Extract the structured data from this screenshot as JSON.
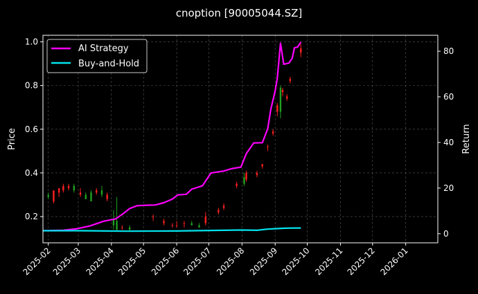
{
  "chart_data": {
    "type": "line",
    "title": "cnoption [90005044.SZ]",
    "ylabel_left": "Price",
    "ylabel_right": "Return",
    "ylim_left": [
      0.08,
      1.03
    ],
    "ylim_right": [
      -4,
      87
    ],
    "xlim": [
      "2025-01-27",
      "2026-01-31"
    ],
    "x_ticks": [
      "2025-02",
      "2025-03",
      "2025-04",
      "2025-05",
      "2025-06",
      "2025-07",
      "2025-08",
      "2025-09",
      "2025-10",
      "2025-11",
      "2025-12",
      "2026-01"
    ],
    "y_ticks_left": [
      "0.2",
      "0.4",
      "0.6",
      "0.8",
      "1.0"
    ],
    "y_ticks_right": [
      "0",
      "20",
      "40",
      "60",
      "80"
    ],
    "grid": true,
    "legend_position": "top-left",
    "colors": {
      "background": "#000000",
      "ai_strategy": "#ff00ff",
      "buy_and_hold": "#00e5ee",
      "candle_up": "#ff2020",
      "candle_down": "#20a020",
      "grid": "#5a5a5a"
    },
    "series": [
      {
        "name": "AI Strategy",
        "axis": "right",
        "points": [
          [
            "2025-01-27",
            1.3
          ],
          [
            "2025-02-15",
            1.5
          ],
          [
            "2025-02-28",
            2.2
          ],
          [
            "2025-03-12",
            3.4
          ],
          [
            "2025-03-25",
            5.5
          ],
          [
            "2025-04-05",
            6.5
          ],
          [
            "2025-04-12",
            8.8
          ],
          [
            "2025-04-18",
            11.0
          ],
          [
            "2025-04-25",
            12.3
          ],
          [
            "2025-05-05",
            12.5
          ],
          [
            "2025-05-12",
            12.6
          ],
          [
            "2025-05-20",
            13.6
          ],
          [
            "2025-05-28",
            15.2
          ],
          [
            "2025-06-02",
            17.0
          ],
          [
            "2025-06-10",
            17.3
          ],
          [
            "2025-06-15",
            19.5
          ],
          [
            "2025-06-25",
            21.0
          ],
          [
            "2025-07-03",
            26.6
          ],
          [
            "2025-07-15",
            27.5
          ],
          [
            "2025-07-22",
            28.5
          ],
          [
            "2025-07-31",
            29.2
          ],
          [
            "2025-08-05",
            35.1
          ],
          [
            "2025-08-12",
            39.8
          ],
          [
            "2025-08-20",
            39.9
          ],
          [
            "2025-08-25",
            46.0
          ],
          [
            "2025-08-28",
            54.6
          ],
          [
            "2025-09-01",
            62.6
          ],
          [
            "2025-09-03",
            68.2
          ],
          [
            "2025-09-06",
            83.5
          ],
          [
            "2025-09-09",
            74.3
          ],
          [
            "2025-09-14",
            74.9
          ],
          [
            "2025-09-17",
            77.0
          ],
          [
            "2025-09-19",
            81.5
          ],
          [
            "2025-09-22",
            81.8
          ],
          [
            "2025-09-25",
            84.0
          ]
        ]
      },
      {
        "name": "Buy-and-Hold",
        "axis": "right",
        "points": [
          [
            "2025-01-27",
            1.3
          ],
          [
            "2025-03-01",
            1.3
          ],
          [
            "2025-04-15",
            1.1
          ],
          [
            "2025-06-01",
            1.2
          ],
          [
            "2025-07-15",
            1.5
          ],
          [
            "2025-08-01",
            1.6
          ],
          [
            "2025-08-15",
            1.5
          ],
          [
            "2025-08-25",
            2.0
          ],
          [
            "2025-09-01",
            2.2
          ],
          [
            "2025-09-10",
            2.4
          ],
          [
            "2025-09-20",
            2.5
          ],
          [
            "2025-09-25",
            2.5
          ]
        ]
      }
    ],
    "candles": [
      {
        "x": "2025-02-01",
        "o": 0.3,
        "h": 0.31,
        "l": 0.28,
        "c": 0.29
      },
      {
        "x": "2025-02-06",
        "o": 0.27,
        "h": 0.32,
        "l": 0.26,
        "c": 0.32
      },
      {
        "x": "2025-02-11",
        "o": 0.31,
        "h": 0.33,
        "l": 0.29,
        "c": 0.33
      },
      {
        "x": "2025-02-15",
        "o": 0.32,
        "h": 0.35,
        "l": 0.31,
        "c": 0.34
      },
      {
        "x": "2025-02-20",
        "o": 0.33,
        "h": 0.35,
        "l": 0.32,
        "c": 0.34
      },
      {
        "x": "2025-02-25",
        "o": 0.34,
        "h": 0.35,
        "l": 0.31,
        "c": 0.32
      },
      {
        "x": "2025-03-03",
        "o": 0.3,
        "h": 0.33,
        "l": 0.29,
        "c": 0.31
      },
      {
        "x": "2025-03-08",
        "o": 0.3,
        "h": 0.31,
        "l": 0.28,
        "c": 0.28
      },
      {
        "x": "2025-03-13",
        "o": 0.31,
        "h": 0.32,
        "l": 0.27,
        "c": 0.27
      },
      {
        "x": "2025-03-18",
        "o": 0.31,
        "h": 0.33,
        "l": 0.3,
        "c": 0.32
      },
      {
        "x": "2025-03-23",
        "o": 0.32,
        "h": 0.34,
        "l": 0.29,
        "c": 0.3
      },
      {
        "x": "2025-03-28",
        "o": 0.28,
        "h": 0.31,
        "l": 0.27,
        "c": 0.3
      },
      {
        "x": "2025-04-03",
        "o": 0.19,
        "h": 0.23,
        "l": 0.14,
        "c": 0.16
      },
      {
        "x": "2025-04-06",
        "o": 0.18,
        "h": 0.29,
        "l": 0.13,
        "c": 0.14
      },
      {
        "x": "2025-04-11",
        "o": 0.15,
        "h": 0.16,
        "l": 0.14,
        "c": 0.15
      },
      {
        "x": "2025-04-18",
        "o": 0.15,
        "h": 0.16,
        "l": 0.13,
        "c": 0.14
      },
      {
        "x": "2025-05-10",
        "o": 0.2,
        "h": 0.21,
        "l": 0.18,
        "c": 0.2
      },
      {
        "x": "2025-05-20",
        "o": 0.17,
        "h": 0.19,
        "l": 0.16,
        "c": 0.18
      },
      {
        "x": "2025-05-28",
        "o": 0.16,
        "h": 0.17,
        "l": 0.15,
        "c": 0.16
      },
      {
        "x": "2025-06-01",
        "o": 0.16,
        "h": 0.18,
        "l": 0.15,
        "c": 0.16
      },
      {
        "x": "2025-06-08",
        "o": 0.17,
        "h": 0.18,
        "l": 0.15,
        "c": 0.17
      },
      {
        "x": "2025-06-15",
        "o": 0.17,
        "h": 0.18,
        "l": 0.16,
        "c": 0.16
      },
      {
        "x": "2025-06-22",
        "o": 0.16,
        "h": 0.17,
        "l": 0.15,
        "c": 0.15
      },
      {
        "x": "2025-06-28",
        "o": 0.17,
        "h": 0.22,
        "l": 0.16,
        "c": 0.2
      },
      {
        "x": "2025-07-10",
        "o": 0.22,
        "h": 0.24,
        "l": 0.21,
        "c": 0.23
      },
      {
        "x": "2025-07-15",
        "o": 0.24,
        "h": 0.26,
        "l": 0.23,
        "c": 0.25
      },
      {
        "x": "2025-07-27",
        "o": 0.34,
        "h": 0.36,
        "l": 0.33,
        "c": 0.35
      },
      {
        "x": "2025-08-03",
        "o": 0.38,
        "h": 0.4,
        "l": 0.34,
        "c": 0.35
      },
      {
        "x": "2025-08-05",
        "o": 0.37,
        "h": 0.41,
        "l": 0.36,
        "c": 0.4
      },
      {
        "x": "2025-08-15",
        "o": 0.39,
        "h": 0.41,
        "l": 0.38,
        "c": 0.4
      },
      {
        "x": "2025-08-20",
        "o": 0.43,
        "h": 0.44,
        "l": 0.42,
        "c": 0.44
      },
      {
        "x": "2025-08-25",
        "o": 0.52,
        "h": 0.53,
        "l": 0.5,
        "c": 0.52
      },
      {
        "x": "2025-08-30",
        "o": 0.58,
        "h": 0.6,
        "l": 0.57,
        "c": 0.59
      },
      {
        "x": "2025-09-03",
        "o": 0.68,
        "h": 0.72,
        "l": 0.66,
        "c": 0.71
      },
      {
        "x": "2025-09-06",
        "o": 0.79,
        "h": 0.8,
        "l": 0.65,
        "c": 0.68
      },
      {
        "x": "2025-09-08",
        "o": 0.77,
        "h": 0.79,
        "l": 0.75,
        "c": 0.78
      },
      {
        "x": "2025-09-12",
        "o": 0.74,
        "h": 0.76,
        "l": 0.73,
        "c": 0.75
      },
      {
        "x": "2025-09-15",
        "o": 0.82,
        "h": 0.84,
        "l": 0.81,
        "c": 0.83
      },
      {
        "x": "2025-09-25",
        "o": 0.95,
        "h": 0.99,
        "l": 0.93,
        "c": 0.97
      }
    ]
  }
}
